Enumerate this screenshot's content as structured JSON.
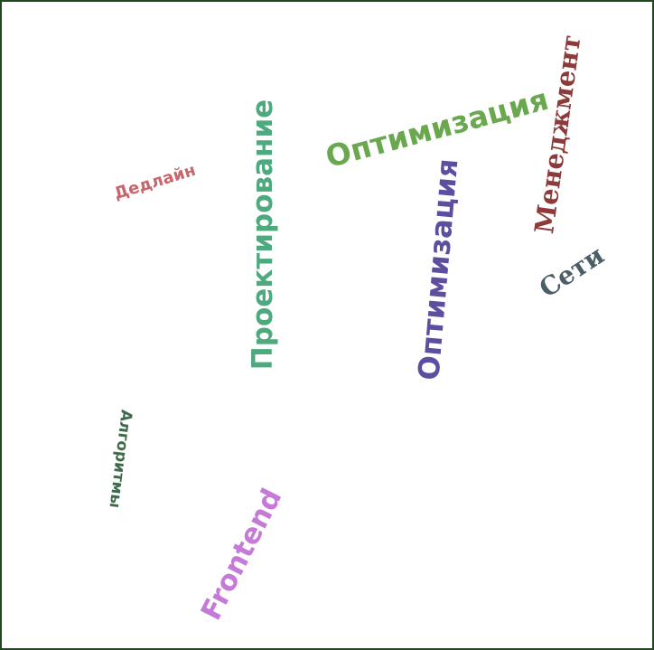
{
  "words": [
    {
      "key": "optimizatsiya_green",
      "text": "Оптимизация",
      "color": "#6aa84f"
    },
    {
      "key": "menedzhment",
      "text": "Менеджмент",
      "color": "#8c3a3a"
    },
    {
      "key": "proektirovanie",
      "text": "Проектирование",
      "color": "#4daa7f"
    },
    {
      "key": "dedlayn",
      "text": "Дедлайн",
      "color": "#c8666b"
    },
    {
      "key": "optimizatsiya_purple",
      "text": "Оптимизация",
      "color": "#5e4ea0"
    },
    {
      "key": "seti",
      "text": "Сети",
      "color": "#4b5d66"
    },
    {
      "key": "algoritmy",
      "text": "Алгоритмы",
      "color": "#3f6b4b"
    },
    {
      "key": "frontend",
      "text": "Frontend",
      "color": "#c47ad6"
    }
  ]
}
